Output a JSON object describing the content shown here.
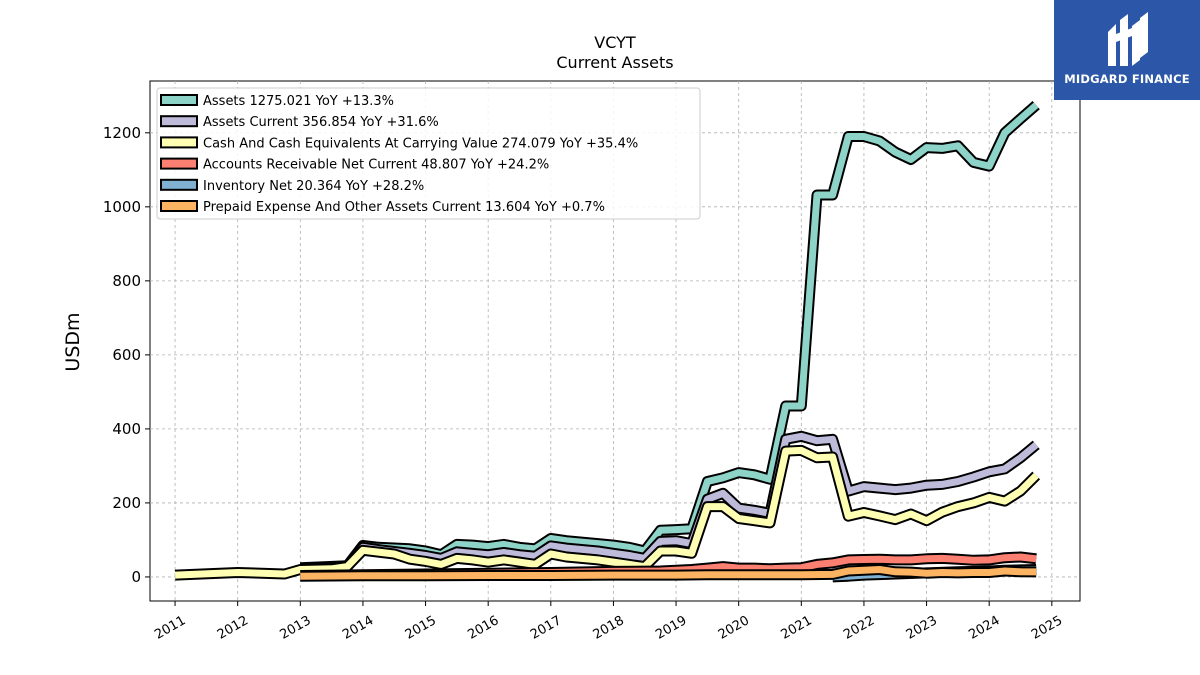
{
  "chart_data": {
    "type": "area",
    "title": "VCYT",
    "subtitle": "Current  Assets",
    "ylabel": "USDm",
    "xlabel": "",
    "xlim": [
      2010.6,
      2025.45
    ],
    "ylim": [
      -65,
      1340
    ],
    "yticks": [
      0,
      200,
      400,
      600,
      800,
      1000,
      1200
    ],
    "xticks": [
      "2011",
      "2012",
      "2013",
      "2014",
      "2015",
      "2016",
      "2017",
      "2018",
      "2019",
      "2020",
      "2021",
      "2022",
      "2023",
      "2024",
      "2025"
    ],
    "grid": true,
    "legend_position": "top-left",
    "series": [
      {
        "name": "Assets",
        "legend": "Assets  1275.021 YoY +13.3%",
        "color": "#8dd3c7",
        "x": [
          2013.0,
          2013.75,
          2014.0,
          2014.25,
          2014.75,
          2015.0,
          2015.25,
          2015.5,
          2015.75,
          2016.0,
          2016.25,
          2016.5,
          2016.75,
          2017.0,
          2017.25,
          2017.75,
          2018.0,
          2018.25,
          2018.5,
          2018.75,
          2019.0,
          2019.25,
          2019.5,
          2019.75,
          2020.0,
          2020.25,
          2020.5,
          2020.75,
          2021.0,
          2021.25,
          2021.5,
          2021.75,
          2022.0,
          2022.25,
          2022.5,
          2022.75,
          2023.0,
          2023.25,
          2023.5,
          2023.75,
          2024.0,
          2024.25,
          2024.5,
          2024.75
        ],
        "values": [
          25,
          30,
          85,
          80,
          76,
          70,
          60,
          88,
          86,
          82,
          88,
          80,
          76,
          104,
          98,
          90,
          86,
          80,
          70,
          126,
          128,
          130,
          258,
          268,
          282,
          276,
          264,
          462,
          462,
          1032,
          1032,
          1190,
          1190,
          1178,
          1148,
          1128,
          1160,
          1158,
          1165,
          1120,
          1110,
          1200,
          1238,
          1275
        ]
      },
      {
        "name": "Assets Current",
        "legend": "Assets Current  356.854 YoY +31.6%",
        "color": "#bebada",
        "x": [
          2013.0,
          2013.75,
          2014.0,
          2014.25,
          2014.75,
          2015.0,
          2015.25,
          2015.5,
          2015.75,
          2016.0,
          2016.25,
          2016.5,
          2016.75,
          2017.0,
          2017.25,
          2017.75,
          2018.0,
          2018.25,
          2018.5,
          2018.75,
          2019.0,
          2019.25,
          2019.5,
          2019.75,
          2020.0,
          2020.25,
          2020.5,
          2020.75,
          2021.0,
          2021.25,
          2021.5,
          2021.75,
          2022.0,
          2022.25,
          2022.5,
          2022.75,
          2023.0,
          2023.25,
          2023.5,
          2023.75,
          2024.0,
          2024.25,
          2024.5,
          2024.75
        ],
        "values": [
          24,
          28,
          80,
          74,
          64,
          58,
          50,
          68,
          64,
          60,
          66,
          60,
          56,
          84,
          78,
          70,
          64,
          58,
          50,
          96,
          98,
          90,
          210,
          226,
          186,
          180,
          172,
          372,
          380,
          368,
          372,
          232,
          244,
          240,
          236,
          240,
          248,
          250,
          258,
          270,
          284,
          292,
          322,
          357
        ]
      },
      {
        "name": "Cash And Cash Equivalents At Carrying Value",
        "legend": "Cash And Cash Equivalents At Carrying Value  274.079 YoY +35.4%",
        "color": "#ffffb3",
        "x": [
          2011.0,
          2012.0,
          2012.75,
          2013.0,
          2013.5,
          2013.75,
          2014.0,
          2014.5,
          2014.75,
          2015.0,
          2015.25,
          2015.5,
          2015.75,
          2016.0,
          2016.25,
          2016.5,
          2016.75,
          2017.0,
          2017.25,
          2017.75,
          2018.0,
          2018.25,
          2018.5,
          2018.75,
          2019.0,
          2019.25,
          2019.5,
          2019.75,
          2020.0,
          2020.25,
          2020.5,
          2020.75,
          2021.0,
          2021.25,
          2021.5,
          2021.75,
          2022.0,
          2022.25,
          2022.5,
          2022.75,
          2023.0,
          2023.25,
          2023.5,
          2023.75,
          2024.0,
          2024.25,
          2024.5,
          2024.75
        ],
        "values": [
          5,
          12,
          8,
          20,
          22,
          28,
          72,
          62,
          48,
          42,
          34,
          50,
          46,
          40,
          46,
          40,
          34,
          62,
          54,
          46,
          40,
          34,
          28,
          70,
          70,
          64,
          190,
          190,
          158,
          152,
          146,
          340,
          342,
          322,
          324,
          164,
          174,
          165,
          155,
          170,
          152,
          175,
          190,
          200,
          215,
          205,
          232,
          274
        ]
      },
      {
        "name": "Accounts Receivable Net Current",
        "legend": "Accounts Receivable Net Current  48.807 YoY +24.2%",
        "color": "#fb8072",
        "x": [
          2013.0,
          2014.0,
          2015.0,
          2016.0,
          2017.0,
          2018.0,
          2018.75,
          2019.0,
          2019.25,
          2019.5,
          2019.75,
          2020.0,
          2020.25,
          2020.5,
          2020.75,
          2021.0,
          2021.25,
          2021.5,
          2021.75,
          2022.0,
          2022.25,
          2022.5,
          2022.75,
          2023.0,
          2023.25,
          2023.5,
          2023.75,
          2024.0,
          2024.25,
          2024.5,
          2024.75
        ],
        "values": [
          4,
          6,
          8,
          10,
          12,
          15,
          16,
          18,
          20,
          24,
          28,
          24,
          24,
          22,
          24,
          25,
          34,
          38,
          46,
          47,
          48,
          46,
          46,
          49,
          50,
          48,
          45,
          46,
          52,
          54,
          49
        ]
      },
      {
        "name": "Inventory Net",
        "legend": "Inventory Net  20.364 YoY +28.2%",
        "color": "#80b1d3",
        "x": [
          2021.5,
          2021.75,
          2022.0,
          2022.5,
          2023.0,
          2023.5,
          2024.0,
          2024.25,
          2024.5,
          2024.75
        ],
        "values": [
          0,
          2,
          5,
          8,
          11,
          14,
          16,
          18,
          19,
          20
        ]
      },
      {
        "name": "Prepaid Expense And Other Assets Current",
        "legend": "Prepaid Expense And Other Assets Current  13.604 YoY +0.7%",
        "color": "#fdb462",
        "x": [
          2013.0,
          2014.0,
          2015.0,
          2016.0,
          2017.0,
          2018.0,
          2019.0,
          2019.5,
          2020.0,
          2020.5,
          2021.0,
          2021.5,
          2021.75,
          2022.0,
          2022.25,
          2022.5,
          2022.75,
          2023.0,
          2023.25,
          2023.5,
          2023.75,
          2024.0,
          2024.25,
          2024.5,
          2024.75
        ],
        "values": [
          2,
          3,
          3,
          4,
          4,
          5,
          5,
          6,
          6,
          6,
          6,
          7,
          16,
          18,
          20,
          14,
          13,
          10,
          12,
          11,
          12,
          12,
          16,
          14,
          13.6
        ]
      }
    ]
  },
  "logo": {
    "text": "MIDGARD FINANCE",
    "color": "#2c57a8"
  }
}
